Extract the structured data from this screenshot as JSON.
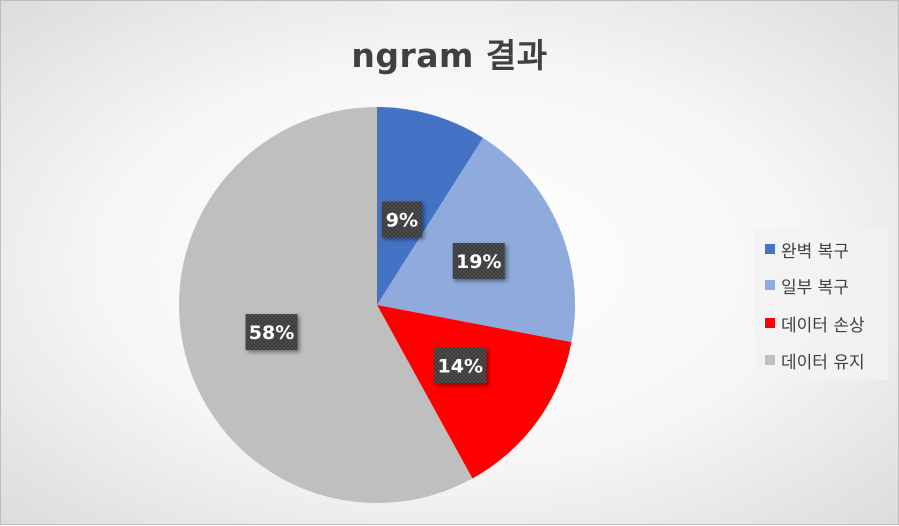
{
  "chart_data": {
    "type": "pie",
    "title": "ngram 결과",
    "categories": [
      "완벽 복구",
      "일부 복구",
      "데이터 손상",
      "데이터 유지"
    ],
    "values": [
      9,
      19,
      14,
      58
    ],
    "labels": [
      "9%",
      "19%",
      "14%",
      "58%"
    ],
    "colors": [
      "#4472c4",
      "#8faadc",
      "#ff0000",
      "#bfbfbf"
    ],
    "legend_position": "right"
  }
}
